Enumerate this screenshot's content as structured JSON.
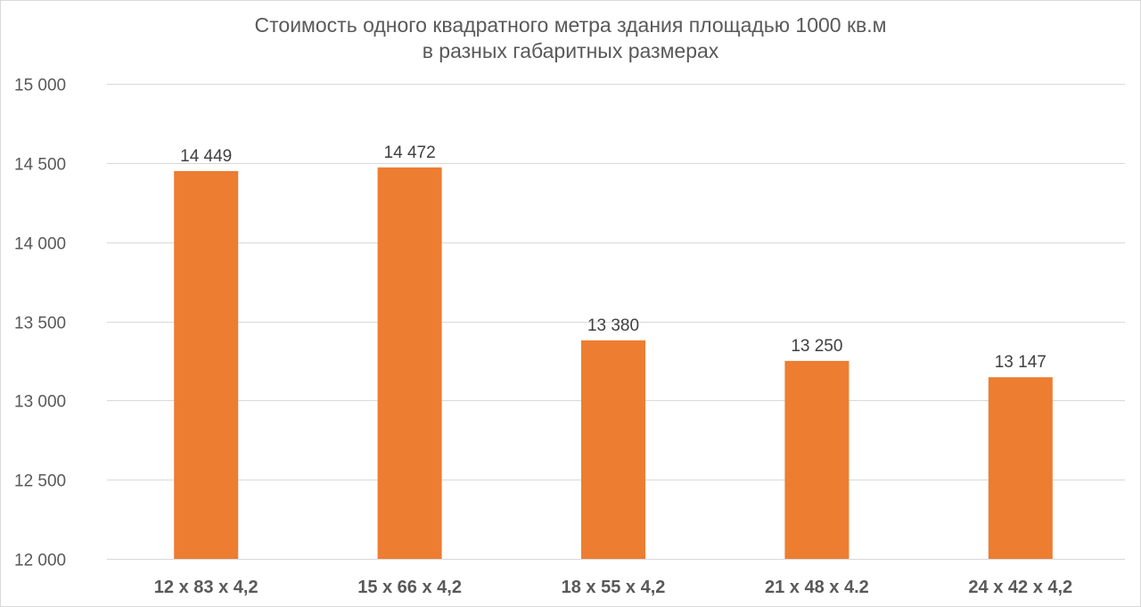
{
  "chart_data": {
    "type": "bar",
    "title": [
      "Стоимость одного квадратного метра здания площадью 1000 кв.м",
      "в разных габаритных размерах"
    ],
    "categories": [
      "12 х 83 х 4,2",
      "15 х 66 х 4,2",
      "18 х 55 х 4,2",
      "21 х 48 х 4.2",
      "24 х 42 х 4,2"
    ],
    "values": [
      14449,
      14472,
      13380,
      13250,
      13147
    ],
    "data_labels": [
      "14 449",
      "14 472",
      "13 380",
      "13 250",
      "13 147"
    ],
    "yticks": [
      12000,
      12500,
      13000,
      13500,
      14000,
      14500,
      15000
    ],
    "ytick_labels": [
      "12 000",
      "12 500",
      "13 000",
      "13 500",
      "14 000",
      "14 500",
      "15 000"
    ],
    "ylim": [
      12000,
      15000
    ],
    "xlabel": "",
    "ylabel": "",
    "grid": true,
    "legend": "none",
    "bar_color": "#ED7D31",
    "grid_color": "#D9D9D9",
    "text_color": "#595959"
  }
}
